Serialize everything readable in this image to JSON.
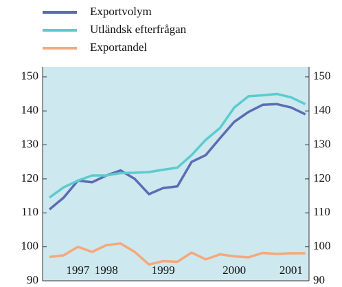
{
  "chart_data": {
    "type": "line",
    "categories": [
      null,
      null,
      "1997",
      null,
      "1998",
      null,
      null,
      null,
      "1999",
      null,
      null,
      null,
      null,
      "2000",
      null,
      null,
      null,
      "2001",
      null
    ],
    "series": [
      {
        "name": "Exportvolym",
        "color": "#5a6cb4",
        "values": [
          111,
          114.5,
          119.5,
          119,
          121,
          122.5,
          120,
          115.5,
          117.3,
          117.8,
          125,
          127,
          132,
          136.8,
          139.7,
          141.8,
          142,
          141,
          139
        ]
      },
      {
        "name": "Utländsk efterfrågan",
        "color": "#5ccbcf",
        "values": [
          114.5,
          117.5,
          119.5,
          121,
          121,
          121.7,
          121.8,
          122,
          122.7,
          123.3,
          127,
          131.5,
          135,
          141,
          144.3,
          144.6,
          145,
          144,
          142
        ]
      },
      {
        "name": "Exportandel",
        "color": "#f5a87b",
        "values": [
          97,
          97.5,
          100,
          98.5,
          100.5,
          101,
          98.5,
          94.8,
          95.8,
          95.6,
          98.3,
          96.3,
          97.8,
          97.2,
          96.9,
          98.2,
          97.9,
          98.1,
          98.1
        ]
      }
    ],
    "ylim": [
      90,
      153
    ],
    "yticks": [
      90,
      100,
      110,
      120,
      130,
      140,
      150
    ],
    "y2lim": [
      90,
      153
    ],
    "y2ticks": [
      90,
      100,
      110,
      120,
      130,
      140,
      150
    ],
    "background": "#cde8ee"
  }
}
